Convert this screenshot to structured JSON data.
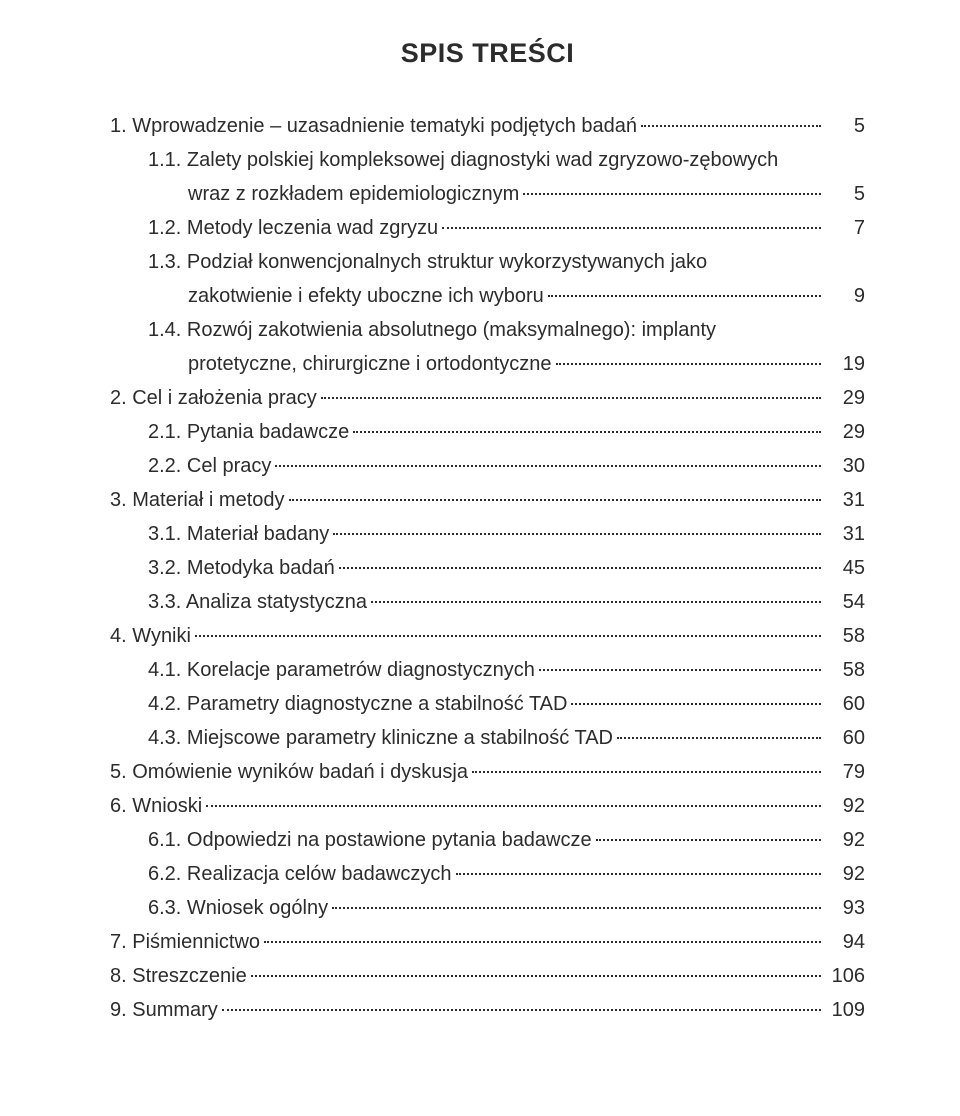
{
  "title": "SPIS TREŚCI",
  "typography": {
    "title_fontsize": 27,
    "body_fontsize": 20,
    "line_height": 1.7,
    "font_color": "#2c2c2c",
    "background": "#ffffff"
  },
  "entries": [
    {
      "level": 0,
      "text": "1. Wprowadzenie – uzasadnienie tematyki podjętych badań",
      "page": "5"
    },
    {
      "level": 1,
      "text": "1.1. Zalety polskiej kompleksowej diagnostyki wad zgryzowo-zębowych",
      "wrap": "wraz z rozkładem epidemiologicznym",
      "page": "5"
    },
    {
      "level": 1,
      "text": "1.2. Metody leczenia wad zgryzu",
      "page": "7"
    },
    {
      "level": 1,
      "text": "1.3. Podział konwencjonalnych struktur wykorzystywanych jako",
      "wrap": "zakotwienie i efekty uboczne ich wyboru",
      "page": "9"
    },
    {
      "level": 1,
      "text": "1.4. Rozwój zakotwienia absolutnego (maksymalnego): implanty",
      "wrap": "protetyczne, chirurgiczne i ortodontyczne",
      "page": "19"
    },
    {
      "level": 0,
      "text": "2. Cel i założenia pracy",
      "page": "29"
    },
    {
      "level": 1,
      "text": "2.1. Pytania badawcze",
      "page": "29"
    },
    {
      "level": 1,
      "text": "2.2. Cel pracy",
      "page": "30"
    },
    {
      "level": 0,
      "text": "3. Materiał i metody",
      "page": "31"
    },
    {
      "level": 1,
      "text": "3.1. Materiał badany",
      "page": "31"
    },
    {
      "level": 1,
      "text": "3.2. Metodyka badań",
      "page": "45"
    },
    {
      "level": 1,
      "text": "3.3. Analiza statystyczna",
      "page": "54"
    },
    {
      "level": 0,
      "text": "4. Wyniki",
      "page": "58"
    },
    {
      "level": 1,
      "text": "4.1. Korelacje parametrów diagnostycznych",
      "page": "58"
    },
    {
      "level": 1,
      "text": "4.2. Parametry diagnostyczne a stabilność TAD",
      "page": "60"
    },
    {
      "level": 1,
      "text": "4.3. Miejscowe parametry kliniczne a stabilność TAD",
      "page": "60"
    },
    {
      "level": 0,
      "text": "5. Omówienie wyników badań i dyskusja",
      "page": "79"
    },
    {
      "level": 0,
      "text": "6. Wnioski",
      "page": "92"
    },
    {
      "level": 1,
      "text": "6.1. Odpowiedzi na postawione pytania badawcze",
      "page": "92"
    },
    {
      "level": 1,
      "text": "6.2. Realizacja celów badawczych",
      "page": "92"
    },
    {
      "level": 1,
      "text": "6.3. Wniosek ogólny",
      "page": "93"
    },
    {
      "level": 0,
      "text": "7. Piśmiennictwo",
      "page": "94"
    },
    {
      "level": 0,
      "text": "8. Streszczenie",
      "page": "106"
    },
    {
      "level": 0,
      "text": "9. Summary",
      "page": "109"
    }
  ]
}
